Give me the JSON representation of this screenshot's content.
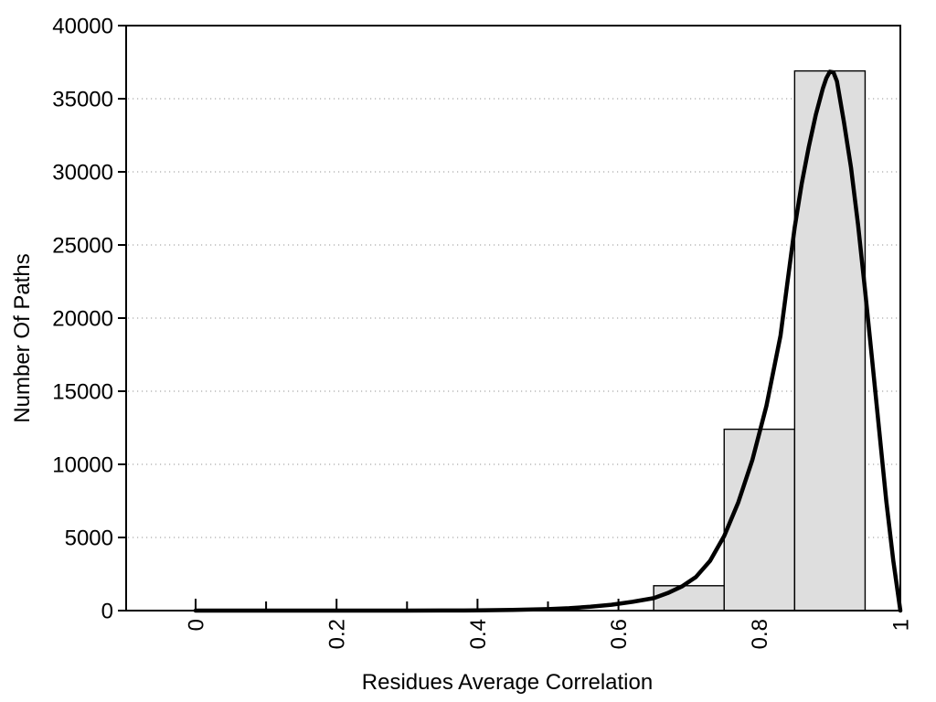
{
  "chart_data": {
    "type": "histogram_with_density_curve",
    "title": "",
    "xlabel": "Residues Average Correlation",
    "ylabel": "Number Of Paths",
    "xlim": [
      0,
      1
    ],
    "ylim": [
      0,
      40000
    ],
    "x_major_ticks": [
      0,
      0.2,
      0.4,
      0.6,
      0.8,
      1
    ],
    "x_major_tick_labels": [
      "0",
      "0.2",
      "0.4",
      "0.6",
      "0.8",
      "1"
    ],
    "x_minor_ticks": [
      0.1,
      0.3,
      0.5,
      0.7,
      0.9
    ],
    "y_ticks": [
      0,
      5000,
      10000,
      15000,
      20000,
      25000,
      30000,
      35000,
      40000
    ],
    "y_tick_labels": [
      "0",
      "5000",
      "10000",
      "15000",
      "20000",
      "25000",
      "30000",
      "35000",
      "40000"
    ],
    "grid": {
      "horizontal": true,
      "vertical": false,
      "style": "dotted"
    },
    "legend": null,
    "bars": [
      {
        "x0": 0.65,
        "x1": 0.75,
        "count": 1700
      },
      {
        "x0": 0.75,
        "x1": 0.85,
        "count": 12400
      },
      {
        "x0": 0.85,
        "x1": 0.95,
        "count": 36900
      }
    ],
    "curve": {
      "name": "density-fit",
      "points": [
        [
          0.0,
          0
        ],
        [
          0.05,
          0
        ],
        [
          0.1,
          0
        ],
        [
          0.15,
          0
        ],
        [
          0.2,
          0
        ],
        [
          0.25,
          0
        ],
        [
          0.3,
          0
        ],
        [
          0.35,
          5
        ],
        [
          0.4,
          15
        ],
        [
          0.45,
          45
        ],
        [
          0.5,
          100
        ],
        [
          0.53,
          160
        ],
        [
          0.56,
          260
        ],
        [
          0.59,
          400
        ],
        [
          0.62,
          600
        ],
        [
          0.65,
          850
        ],
        [
          0.67,
          1200
        ],
        [
          0.69,
          1650
        ],
        [
          0.71,
          2300
        ],
        [
          0.73,
          3400
        ],
        [
          0.75,
          5100
        ],
        [
          0.77,
          7400
        ],
        [
          0.79,
          10300
        ],
        [
          0.81,
          14000
        ],
        [
          0.83,
          18800
        ],
        [
          0.84,
          22500
        ],
        [
          0.85,
          26200
        ],
        [
          0.86,
          29200
        ],
        [
          0.87,
          31700
        ],
        [
          0.88,
          33900
        ],
        [
          0.89,
          35700
        ],
        [
          0.895,
          36400
        ],
        [
          0.9,
          36850
        ],
        [
          0.905,
          36800
        ],
        [
          0.91,
          36200
        ],
        [
          0.92,
          33400
        ],
        [
          0.93,
          30300
        ],
        [
          0.94,
          26400
        ],
        [
          0.95,
          21900
        ],
        [
          0.96,
          17100
        ],
        [
          0.97,
          12300
        ],
        [
          0.98,
          7500
        ],
        [
          0.99,
          3400
        ],
        [
          1.0,
          0
        ]
      ]
    },
    "colors": {
      "background": "#ffffff",
      "bar_fill": "#dedede",
      "bar_border": "#000000",
      "curve": "#000000",
      "axis": "#000000",
      "grid": "#b8b8b8",
      "text": "#000000"
    }
  }
}
